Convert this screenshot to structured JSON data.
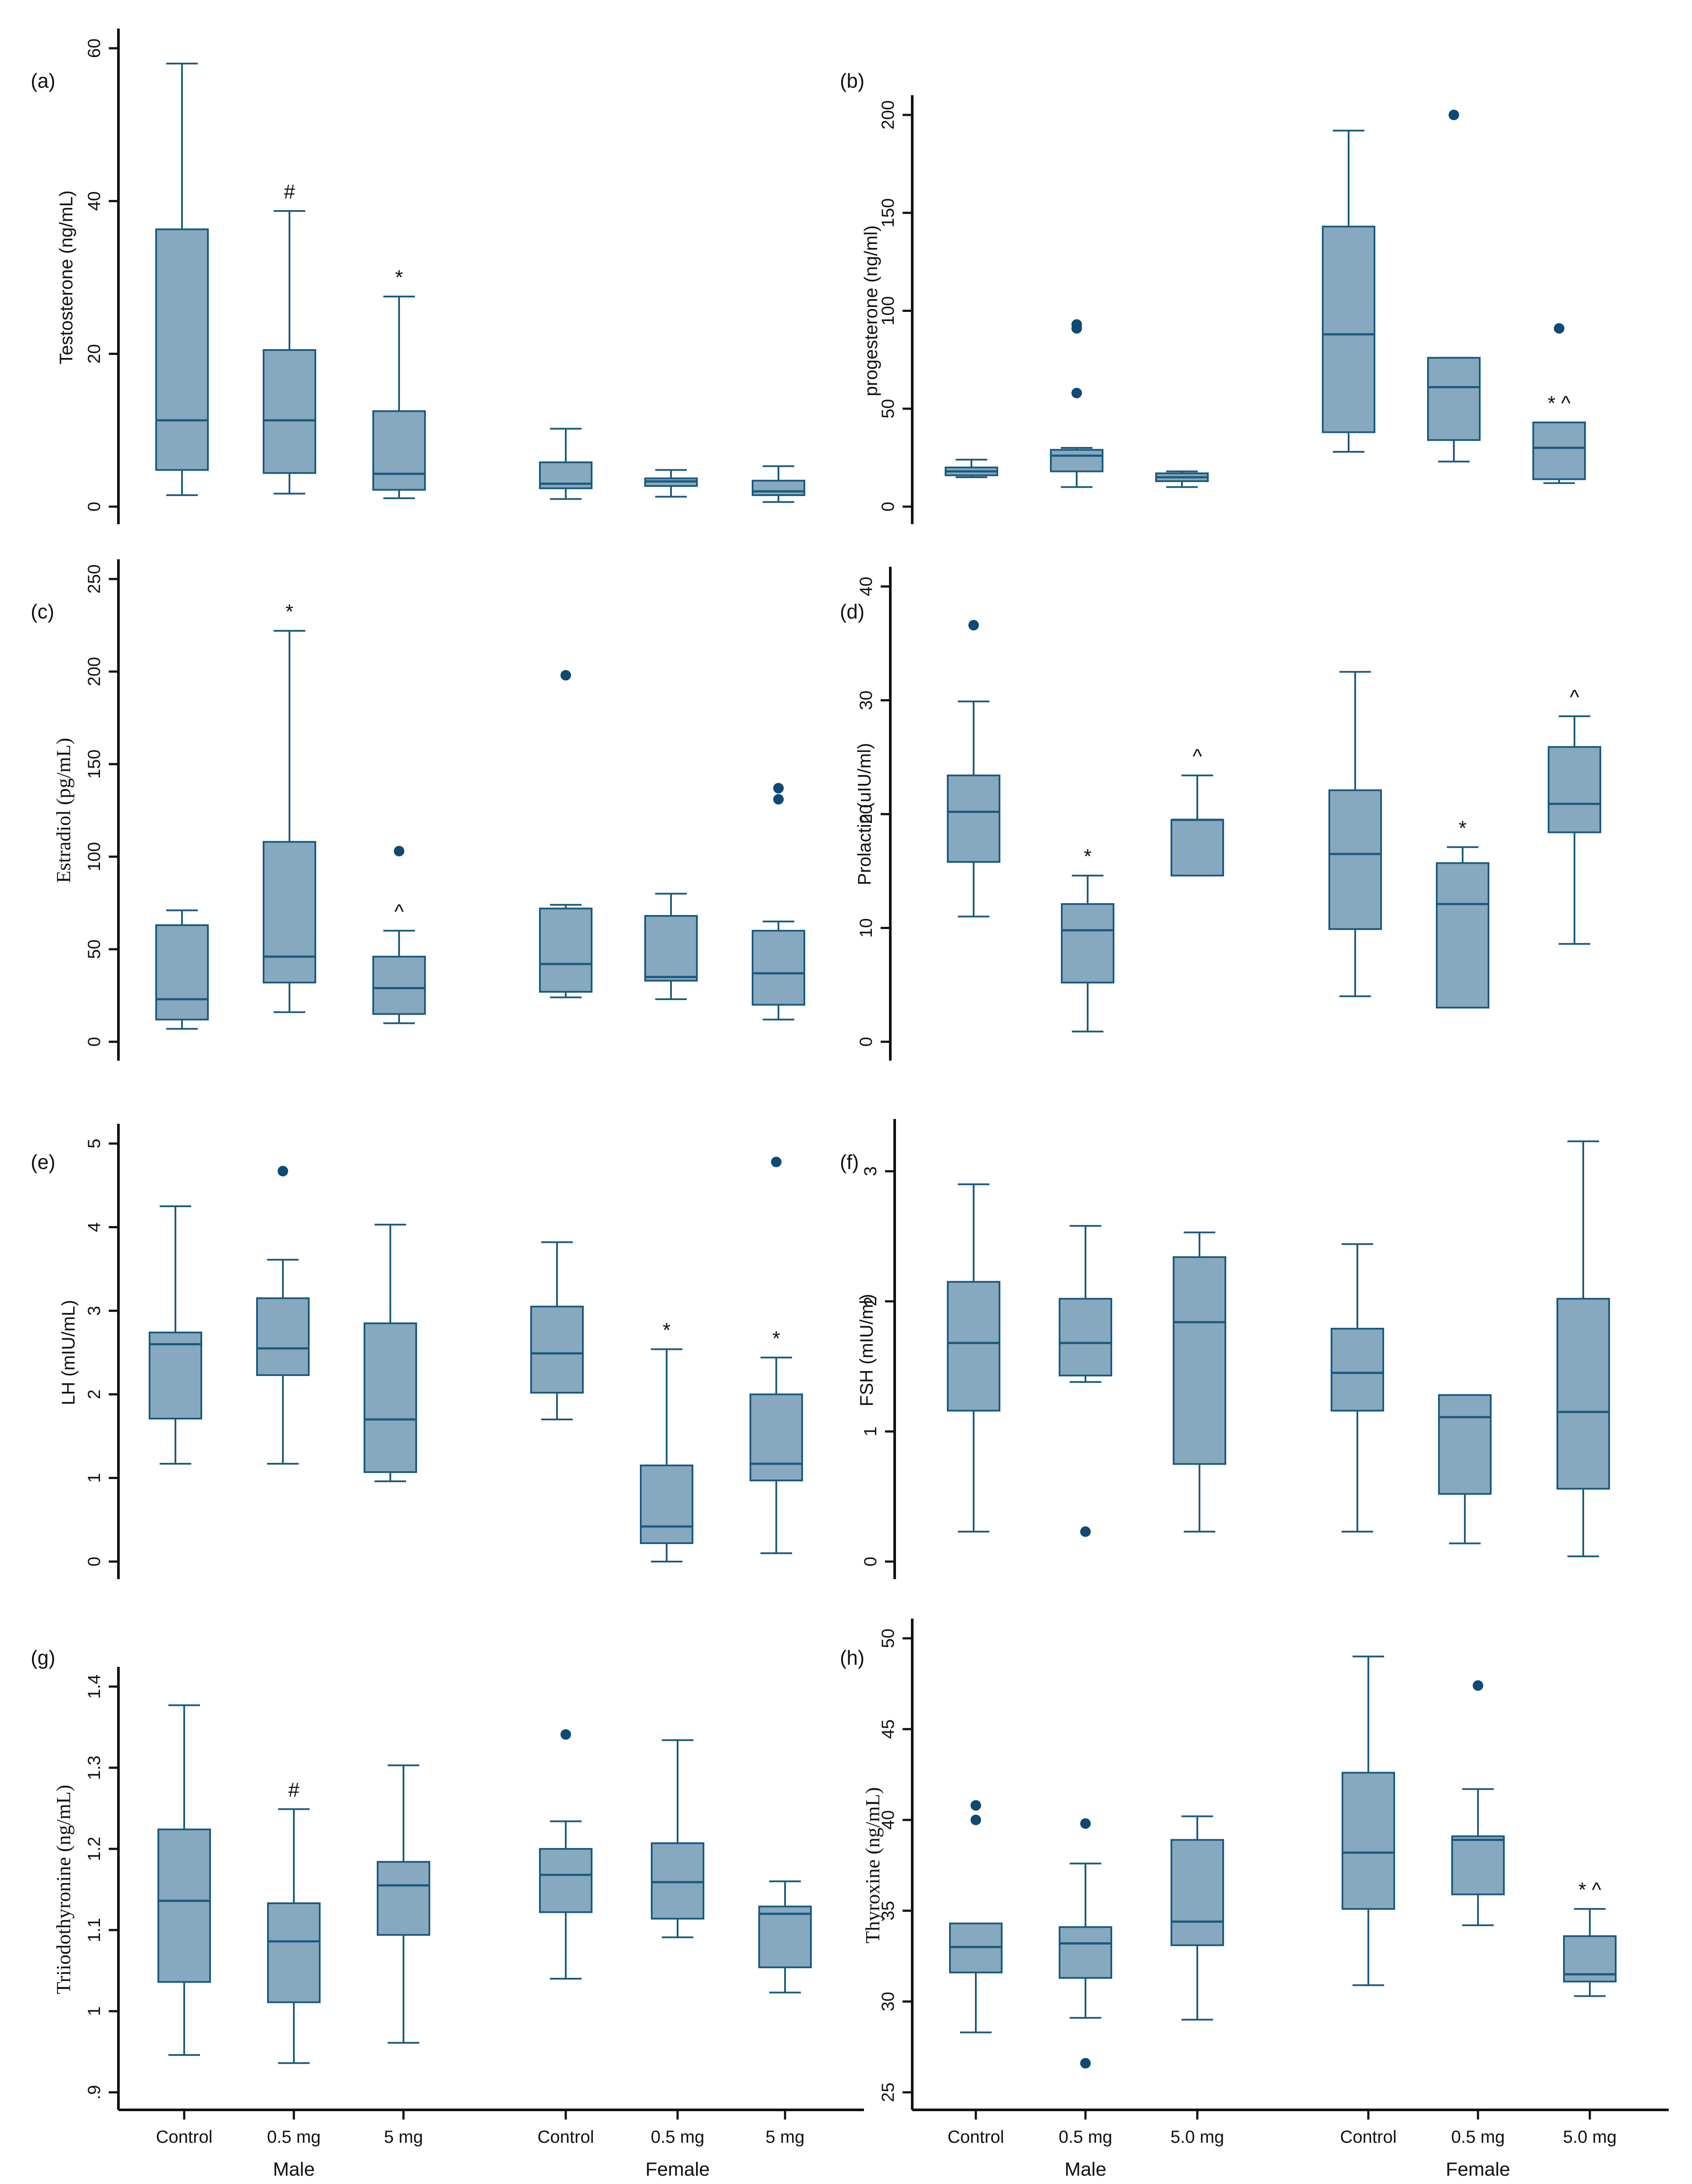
{
  "colors": {
    "box_fill": "#86a9c0",
    "box_stroke": "#1a5a7e",
    "outlier": "#0e4a73",
    "axis": "#111111"
  },
  "group_labels": [
    "Male",
    "Female"
  ],
  "chart_data": [
    {
      "type": "boxplot",
      "panel_label": "(a)",
      "ylabel": "Testosterone (ng/mL)",
      "ylabel_font": "sans",
      "ylim": [
        0,
        60
      ],
      "yticks": [
        0,
        20,
        40,
        60
      ],
      "ytick_labels": [
        "0",
        "20",
        "40",
        "60"
      ],
      "categories": [
        "Control",
        "0.5 mg",
        "5 mg",
        "Control",
        "0.5 mg",
        "5 mg"
      ],
      "show_xticks": false,
      "boxes": [
        {
          "whisker_low": 1.5,
          "q1": 4.8,
          "median": 11.3,
          "q3": 36.3,
          "whisker_high": 58,
          "outliers": [],
          "annotation": ""
        },
        {
          "whisker_low": 1.7,
          "q1": 4.4,
          "median": 11.3,
          "q3": 20.5,
          "whisker_high": 38.7,
          "outliers": [],
          "annotation": "#"
        },
        {
          "whisker_low": 1.1,
          "q1": 2.2,
          "median": 4.3,
          "q3": 12.5,
          "whisker_high": 27.5,
          "outliers": [],
          "annotation": "*"
        },
        {
          "whisker_low": 1.0,
          "q1": 2.4,
          "median": 3.0,
          "q3": 5.8,
          "whisker_high": 10.2,
          "outliers": [],
          "annotation": ""
        },
        {
          "whisker_low": 1.3,
          "q1": 2.7,
          "median": 3.3,
          "q3": 3.7,
          "whisker_high": 4.8,
          "outliers": [],
          "annotation": ""
        },
        {
          "whisker_low": 0.6,
          "q1": 1.5,
          "median": 2.0,
          "q3": 3.4,
          "whisker_high": 5.3,
          "outliers": [],
          "annotation": ""
        }
      ]
    },
    {
      "type": "boxplot",
      "panel_label": "(b)",
      "ylabel": "progesterone (ng/ml)",
      "ylabel_font": "sans",
      "ylim": [
        0,
        200
      ],
      "yticks": [
        0,
        50,
        100,
        150,
        200
      ],
      "ytick_labels": [
        "0",
        "50",
        "100",
        "150",
        "200"
      ],
      "categories": [
        "Control",
        "0.5 mg",
        "5.0 mg",
        "Control",
        "0.5 mg",
        "5.0 mg"
      ],
      "show_xticks": false,
      "boxes": [
        {
          "whisker_low": 15,
          "q1": 16,
          "median": 18,
          "q3": 20,
          "whisker_high": 24,
          "outliers": [],
          "annotation": ""
        },
        {
          "whisker_low": 10,
          "q1": 18,
          "median": 26,
          "q3": 29,
          "whisker_high": 30,
          "outliers": [
            58,
            91,
            93
          ],
          "annotation": ""
        },
        {
          "whisker_low": 10,
          "q1": 13,
          "median": 15,
          "q3": 17,
          "whisker_high": 18,
          "outliers": [],
          "annotation": ""
        },
        {
          "whisker_low": 28,
          "q1": 38,
          "median": 88,
          "q3": 143,
          "whisker_high": 192,
          "outliers": [],
          "annotation": ""
        },
        {
          "whisker_low": 23,
          "q1": 34,
          "median": 61,
          "q3": 76,
          "whisker_high": 76,
          "outliers": [
            200
          ],
          "annotation": ""
        },
        {
          "whisker_low": 12,
          "q1": 14,
          "median": 30,
          "q3": 43,
          "whisker_high": 43,
          "outliers": [
            91
          ],
          "annotation": "* ^"
        }
      ]
    },
    {
      "type": "boxplot",
      "panel_label": "(c)",
      "ylabel": "Estradiol (pg/mL)",
      "ylabel_font": "serif",
      "ylim": [
        0,
        250
      ],
      "yticks": [
        0,
        50,
        100,
        150,
        200,
        250
      ],
      "ytick_labels": [
        "0",
        "50",
        "100",
        "150",
        "200",
        "250"
      ],
      "categories": [
        "Control",
        "0.5 mg",
        "5 mg",
        "Control",
        "0.5 mg",
        "5 mg"
      ],
      "show_xticks": false,
      "boxes": [
        {
          "whisker_low": 7,
          "q1": 12,
          "median": 23,
          "q3": 63,
          "whisker_high": 71,
          "outliers": [],
          "annotation": ""
        },
        {
          "whisker_low": 16,
          "q1": 32,
          "median": 46,
          "q3": 108,
          "whisker_high": 222,
          "outliers": [],
          "annotation": "*"
        },
        {
          "whisker_low": 10,
          "q1": 15,
          "median": 29,
          "q3": 46,
          "whisker_high": 60,
          "outliers": [
            103
          ],
          "annotation": "^"
        },
        {
          "whisker_low": 24,
          "q1": 27,
          "median": 42,
          "q3": 72,
          "whisker_high": 74,
          "outliers": [
            198
          ],
          "annotation": ""
        },
        {
          "whisker_low": 23,
          "q1": 33,
          "median": 35,
          "q3": 68,
          "whisker_high": 80,
          "outliers": [],
          "annotation": ""
        },
        {
          "whisker_low": 12,
          "q1": 20,
          "median": 37,
          "q3": 60,
          "whisker_high": 65,
          "outliers": [
            131,
            137
          ],
          "annotation": ""
        }
      ]
    },
    {
      "type": "boxplot",
      "panel_label": "(d)",
      "ylabel": "Prolactin (uIU/ml)",
      "ylabel_font": "sans",
      "ylim": [
        0,
        40
      ],
      "yticks": [
        0,
        10,
        20,
        30,
        40
      ],
      "ytick_labels": [
        "0",
        "10",
        "20",
        "30",
        "40"
      ],
      "categories": [
        "Control",
        "0.5 mg",
        "5.0 mg",
        "Control",
        "0.5 mg",
        "5.0 mg"
      ],
      "show_xticks": false,
      "boxes": [
        {
          "whisker_low": 11,
          "q1": 15.8,
          "median": 20.2,
          "q3": 23.4,
          "whisker_high": 29.9,
          "outliers": [
            36.6
          ],
          "annotation": ""
        },
        {
          "whisker_low": 0.9,
          "q1": 5.2,
          "median": 9.8,
          "q3": 12.1,
          "whisker_high": 14.6,
          "outliers": [],
          "annotation": "*"
        },
        {
          "whisker_low": 14.6,
          "q1": 14.6,
          "median": 19.5,
          "q3": 19.5,
          "whisker_high": 23.4,
          "outliers": [],
          "annotation": "^"
        },
        {
          "whisker_low": 4.0,
          "q1": 9.9,
          "median": 16.5,
          "q3": 22.1,
          "whisker_high": 32.5,
          "outliers": [],
          "annotation": ""
        },
        {
          "whisker_low": 3.0,
          "q1": 3.0,
          "median": 12.1,
          "q3": 15.7,
          "whisker_high": 17.1,
          "outliers": [],
          "annotation": "*"
        },
        {
          "whisker_low": 8.6,
          "q1": 18.4,
          "median": 20.9,
          "q3": 25.9,
          "whisker_high": 28.6,
          "outliers": [],
          "annotation": "^"
        }
      ]
    },
    {
      "type": "boxplot",
      "panel_label": "(e)",
      "ylabel": "LH (mIU/mL)",
      "ylabel_font": "sans",
      "ylim": [
        0,
        5
      ],
      "yticks": [
        0,
        1,
        2,
        3,
        4,
        5
      ],
      "ytick_labels": [
        "0",
        "1",
        "2",
        "3",
        "4",
        "5"
      ],
      "categories": [
        "Control",
        "0.5 mg",
        "5 mg",
        "Control",
        "0.5 mg",
        "5 mg"
      ],
      "show_xticks": false,
      "boxes": [
        {
          "whisker_low": 1.17,
          "q1": 1.71,
          "median": 2.6,
          "q3": 2.74,
          "whisker_high": 4.25,
          "outliers": [],
          "annotation": ""
        },
        {
          "whisker_low": 1.17,
          "q1": 2.23,
          "median": 2.55,
          "q3": 3.15,
          "whisker_high": 3.61,
          "outliers": [
            4.67
          ],
          "annotation": ""
        },
        {
          "whisker_low": 0.96,
          "q1": 1.07,
          "median": 1.7,
          "q3": 2.85,
          "whisker_high": 4.03,
          "outliers": [],
          "annotation": ""
        },
        {
          "whisker_low": 1.7,
          "q1": 2.02,
          "median": 2.49,
          "q3": 3.05,
          "whisker_high": 3.82,
          "outliers": [],
          "annotation": ""
        },
        {
          "whisker_low": 0.0,
          "q1": 0.22,
          "median": 0.42,
          "q3": 1.15,
          "whisker_high": 2.54,
          "outliers": [],
          "annotation": "*"
        },
        {
          "whisker_low": 0.1,
          "q1": 0.97,
          "median": 1.17,
          "q3": 2.0,
          "whisker_high": 2.44,
          "outliers": [
            4.78
          ],
          "annotation": "*"
        }
      ]
    },
    {
      "type": "boxplot",
      "panel_label": "(f)",
      "ylabel": "FSH (mIU/ml)",
      "ylabel_font": "sans",
      "ylim": [
        0,
        3.25
      ],
      "yticks": [
        0,
        1,
        2,
        3
      ],
      "ytick_labels": [
        "0",
        "1",
        "2",
        "3"
      ],
      "categories": [
        "Control",
        "0.5 mg",
        "5.0 mg",
        "Control",
        "0.5 mg",
        "5.0 mg"
      ],
      "show_xticks": false,
      "boxes": [
        {
          "whisker_low": 0.23,
          "q1": 1.16,
          "median": 1.68,
          "q3": 2.15,
          "whisker_high": 2.9,
          "outliers": [],
          "annotation": ""
        },
        {
          "whisker_low": 1.38,
          "q1": 1.43,
          "median": 1.68,
          "q3": 2.02,
          "whisker_high": 2.58,
          "outliers": [
            0.23
          ],
          "annotation": ""
        },
        {
          "whisker_low": 0.23,
          "q1": 0.75,
          "median": 1.84,
          "q3": 2.34,
          "whisker_high": 2.53,
          "outliers": [],
          "annotation": ""
        },
        {
          "whisker_low": 0.23,
          "q1": 1.16,
          "median": 1.45,
          "q3": 1.79,
          "whisker_high": 2.44,
          "outliers": [],
          "annotation": ""
        },
        {
          "whisker_low": 0.14,
          "q1": 0.52,
          "median": 1.11,
          "q3": 1.28,
          "whisker_high": 1.28,
          "outliers": [],
          "annotation": ""
        },
        {
          "whisker_low": 0.04,
          "q1": 0.56,
          "median": 1.15,
          "q3": 2.02,
          "whisker_high": 3.23,
          "outliers": [],
          "annotation": ""
        }
      ]
    },
    {
      "type": "boxplot",
      "panel_label": "(g)",
      "ylabel": "Triiodothyronine (ng/mL)",
      "ylabel_font": "serif",
      "ylim": [
        0.9,
        1.4
      ],
      "yticks": [
        0.9,
        1.0,
        1.1,
        1.2,
        1.3,
        1.4
      ],
      "ytick_labels": [
        ".9",
        "1",
        "1.1",
        "1.2",
        "1.3",
        "1.4"
      ],
      "categories": [
        "Control",
        "0.5 mg",
        "5 mg",
        "Control",
        "0.5 mg",
        "5 mg"
      ],
      "show_xticks": true,
      "boxes": [
        {
          "whisker_low": 0.946,
          "q1": 1.036,
          "median": 1.136,
          "q3": 1.224,
          "whisker_high": 1.377,
          "outliers": [],
          "annotation": ""
        },
        {
          "whisker_low": 0.936,
          "q1": 1.011,
          "median": 1.086,
          "q3": 1.133,
          "whisker_high": 1.249,
          "outliers": [],
          "annotation": "#"
        },
        {
          "whisker_low": 0.961,
          "q1": 1.094,
          "median": 1.155,
          "q3": 1.184,
          "whisker_high": 1.303,
          "outliers": [],
          "annotation": ""
        },
        {
          "whisker_low": 1.04,
          "q1": 1.122,
          "median": 1.168,
          "q3": 1.2,
          "whisker_high": 1.234,
          "outliers": [
            1.341
          ],
          "annotation": ""
        },
        {
          "whisker_low": 1.091,
          "q1": 1.114,
          "median": 1.159,
          "q3": 1.207,
          "whisker_high": 1.334,
          "outliers": [],
          "annotation": ""
        },
        {
          "whisker_low": 1.023,
          "q1": 1.054,
          "median": 1.12,
          "q3": 1.129,
          "whisker_high": 1.16,
          "outliers": [],
          "annotation": ""
        }
      ]
    },
    {
      "type": "boxplot",
      "panel_label": "(h)",
      "ylabel": "Thyroxine (ng/mL)",
      "ylabel_font": "serif",
      "ylim": [
        25,
        50
      ],
      "yticks": [
        25,
        30,
        35,
        40,
        45,
        50
      ],
      "ytick_labels": [
        "25",
        "30",
        "35",
        "40",
        "45",
        "50"
      ],
      "categories": [
        "Control",
        "0.5 mg",
        "5.0 mg",
        "Control",
        "0.5 mg",
        "5.0 mg"
      ],
      "show_xticks": true,
      "boxes": [
        {
          "whisker_low": 28.3,
          "q1": 31.6,
          "median": 33.0,
          "q3": 34.3,
          "whisker_high": 34.3,
          "outliers": [
            40.0,
            40.8
          ],
          "annotation": ""
        },
        {
          "whisker_low": 29.1,
          "q1": 31.3,
          "median": 33.2,
          "q3": 34.1,
          "whisker_high": 37.6,
          "outliers": [
            26.6,
            39.8
          ],
          "annotation": ""
        },
        {
          "whisker_low": 29.0,
          "q1": 33.1,
          "median": 34.4,
          "q3": 38.9,
          "whisker_high": 40.2,
          "outliers": [],
          "annotation": ""
        },
        {
          "whisker_low": 30.9,
          "q1": 35.1,
          "median": 38.2,
          "q3": 42.6,
          "whisker_high": 49.0,
          "outliers": [],
          "annotation": ""
        },
        {
          "whisker_low": 34.2,
          "q1": 35.9,
          "median": 38.9,
          "q3": 39.1,
          "whisker_high": 41.7,
          "outliers": [
            47.4
          ],
          "annotation": ""
        },
        {
          "whisker_low": 30.3,
          "q1": 31.1,
          "median": 31.5,
          "q3": 33.6,
          "whisker_high": 35.1,
          "outliers": [],
          "annotation": "* ^"
        }
      ]
    }
  ]
}
